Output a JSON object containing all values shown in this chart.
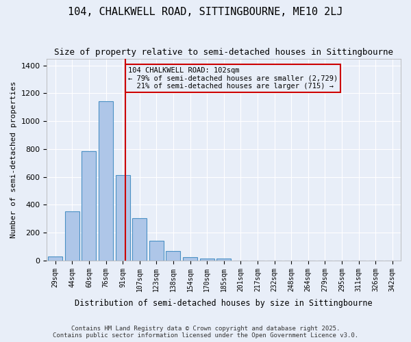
{
  "title": "104, CHALKWELL ROAD, SITTINGBOURNE, ME10 2LJ",
  "subtitle": "Size of property relative to semi-detached houses in Sittingbourne",
  "xlabel": "Distribution of semi-detached houses by size in Sittingbourne",
  "ylabel": "Number of semi-detached properties",
  "bar_color": "#aec6e8",
  "bar_edge_color": "#4a90c4",
  "background_color": "#e8eef8",
  "categories": [
    "29sqm",
    "44sqm",
    "60sqm",
    "76sqm",
    "91sqm",
    "107sqm",
    "123sqm",
    "138sqm",
    "154sqm",
    "170sqm",
    "185sqm",
    "201sqm",
    "217sqm",
    "232sqm",
    "248sqm",
    "264sqm",
    "279sqm",
    "295sqm",
    "311sqm",
    "326sqm",
    "342sqm"
  ],
  "values": [
    30,
    355,
    785,
    1145,
    615,
    305,
    140,
    70,
    25,
    15,
    15,
    0,
    0,
    0,
    0,
    0,
    0,
    0,
    0,
    0,
    0
  ],
  "property_size": 102,
  "property_label": "104 CHALKWELL ROAD: 102sqm",
  "pct_smaller": 79,
  "num_smaller": 2729,
  "pct_larger": 21,
  "num_larger": 715,
  "vline_color": "#cc0000",
  "annotation_box_color": "#cc0000",
  "ylim": [
    0,
    1450
  ],
  "yticks": [
    0,
    200,
    400,
    600,
    800,
    1000,
    1200,
    1400
  ],
  "footnote": "Contains HM Land Registry data © Crown copyright and database right 2025.\nContains public sector information licensed under the Open Government Licence v3.0.",
  "bin_width": 15
}
